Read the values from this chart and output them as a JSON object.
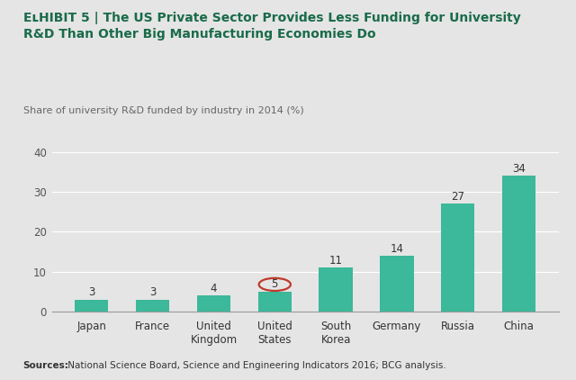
{
  "categories": [
    "Japan",
    "France",
    "United\nKingdom",
    "United\nStates",
    "South\nKorea",
    "Germany",
    "Russia",
    "China"
  ],
  "values": [
    3,
    3,
    4,
    5,
    11,
    14,
    27,
    34
  ],
  "bar_color": "#3cb89a",
  "highlight_index": 3,
  "highlight_circle_color": "#c0392b",
  "title_rest": "The US Private Sector Provides Less Funding for University\nR&D Than Other Big Manufacturing Economies Do",
  "subtitle": "Share of university R&D funded by industry in 2014 (%)",
  "ylabel_max": 40,
  "yticks": [
    0,
    10,
    20,
    30,
    40
  ],
  "source_bold": "Sources:",
  "source_rest": " National Science Board, Science and Engineering Indicators 2016; BCG analysis.",
  "background_color": "#e5e5e5",
  "title_color": "#1a6b4a",
  "bar_width": 0.55
}
